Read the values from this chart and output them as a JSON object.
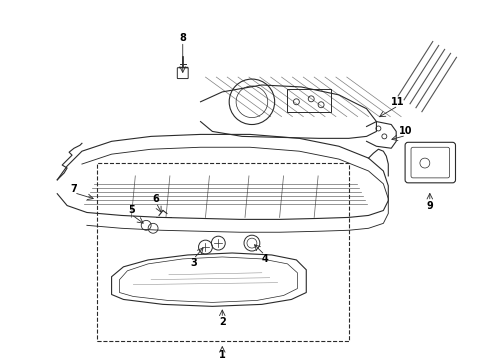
{
  "bg_color": "#ffffff",
  "line_color": "#2a2a2a",
  "label_color": "#000000",
  "label_items": [
    [
      "1",
      222,
      13,
      222,
      5
    ],
    [
      "2",
      222,
      50,
      222,
      38
    ],
    [
      "3",
      205,
      112,
      193,
      98
    ],
    [
      "4",
      252,
      115,
      265,
      102
    ],
    [
      "5",
      145,
      132,
      130,
      143
    ],
    [
      "6",
      162,
      142,
      155,
      155
    ],
    [
      "7",
      95,
      158,
      72,
      165
    ],
    [
      "8",
      182,
      283,
      182,
      318
    ],
    [
      "9",
      432,
      168,
      432,
      156
    ],
    [
      "10",
      390,
      218,
      408,
      223
    ],
    [
      "11",
      378,
      240,
      400,
      253
    ]
  ]
}
